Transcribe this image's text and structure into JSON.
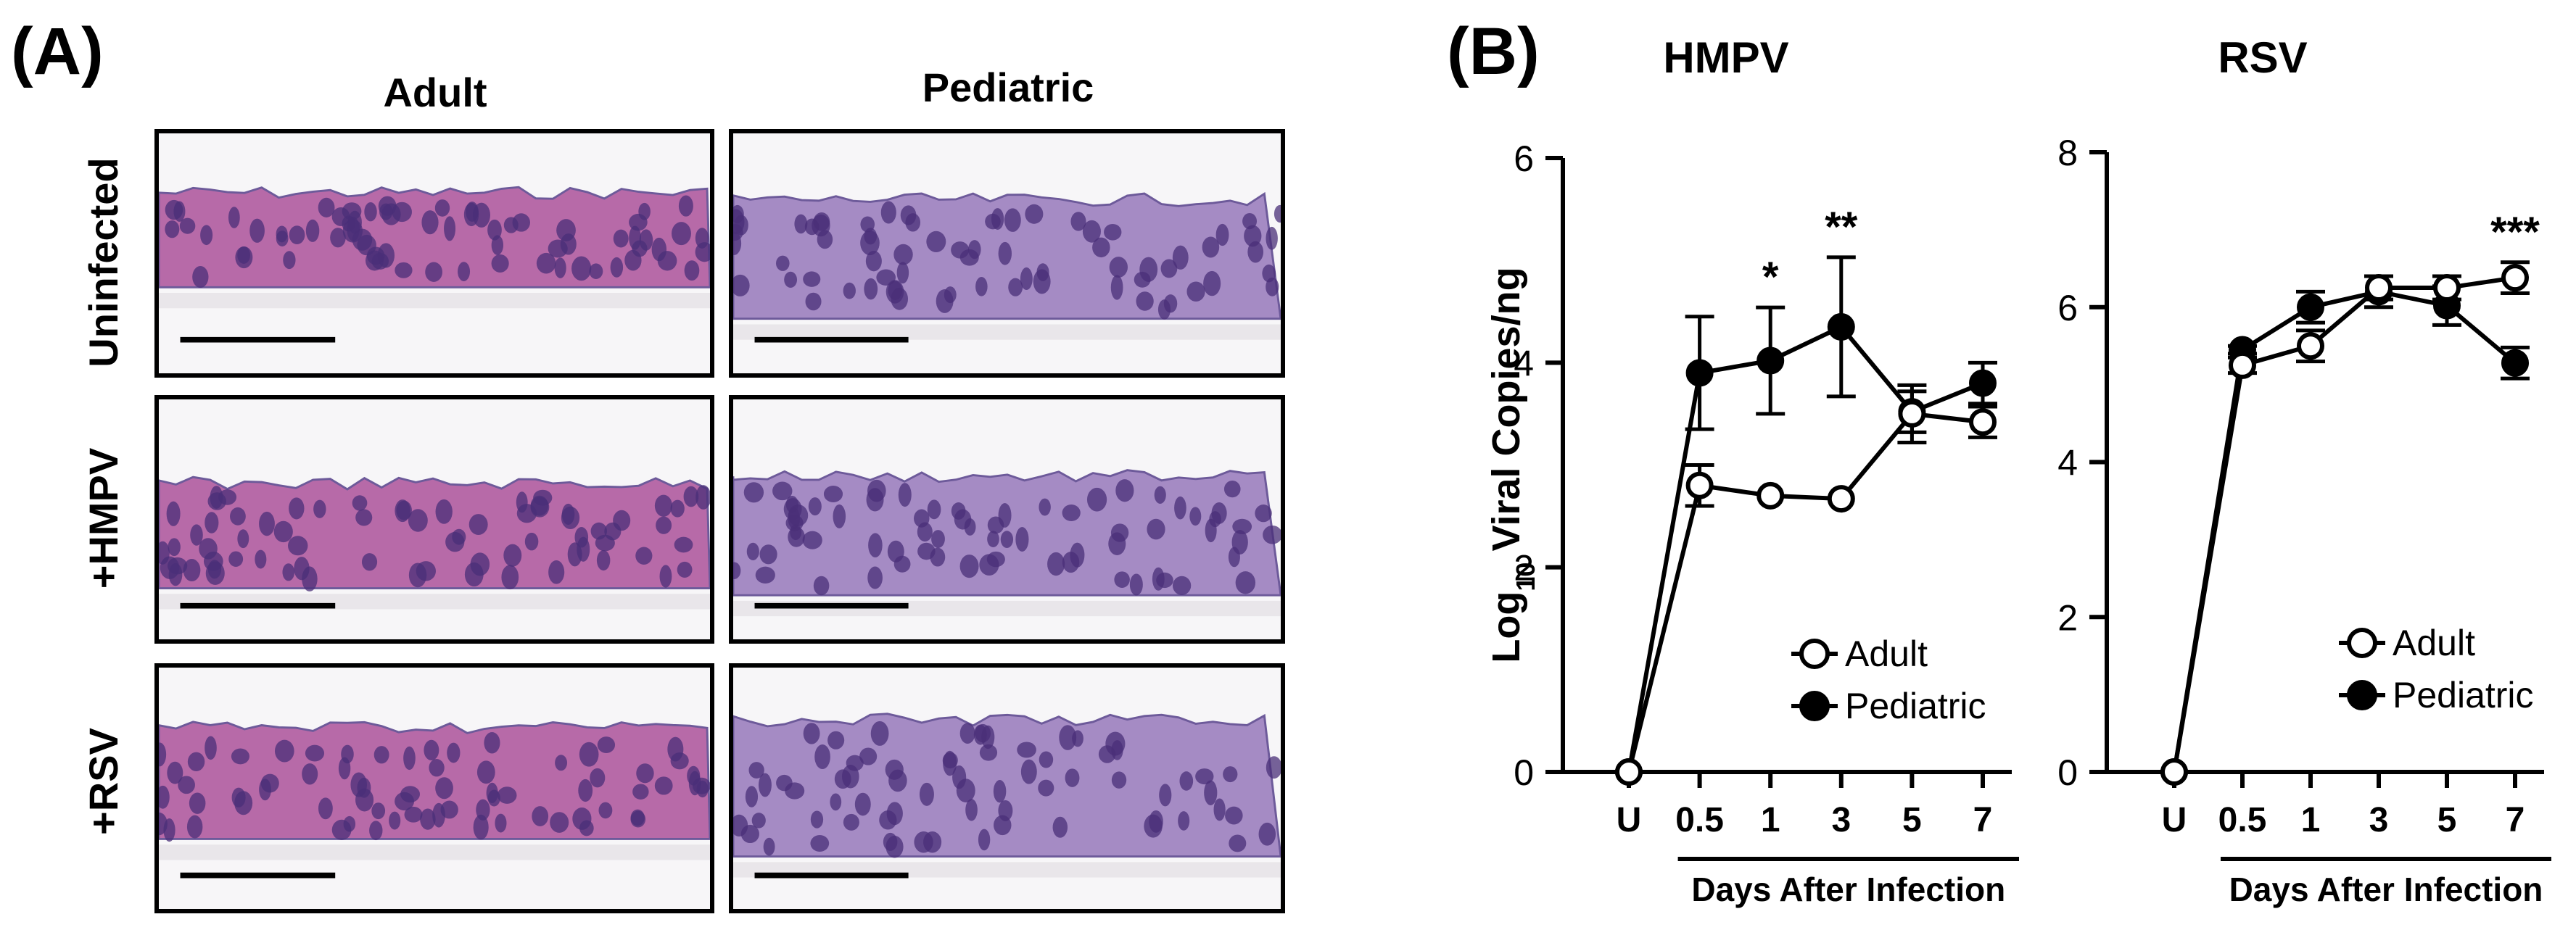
{
  "panel_a": {
    "label": "(A)",
    "columns": [
      "Adult",
      "Pediatric"
    ],
    "rows": [
      "Uninfected",
      "+HMPV",
      "+RSV"
    ]
  },
  "panel_b": {
    "label": "(B)"
  },
  "colors": {
    "tissue_adult": "#b76aa8",
    "tissue_pediatric": "#a58bc4",
    "nuclei": "#4a2f78",
    "membrane": "#e9e6ea"
  },
  "chart_data": [
    {
      "type": "line",
      "title": "HMPV",
      "ylabel": "Log10 Viral Copies/ng",
      "ylabel_main": "Log",
      "ylabel_sub": "10",
      "ylabel_rest": " Viral Copies/ng",
      "xlabel": "Days After Infection",
      "categories": [
        "U",
        "0.5",
        "1",
        "3",
        "5",
        "7"
      ],
      "ylim": [
        0,
        6
      ],
      "yticks": [
        "0",
        "2",
        "4",
        "6"
      ],
      "legend_position": "bottom-right",
      "series": [
        {
          "name": "Adult",
          "marker": "open",
          "values": [
            0,
            2.8,
            2.7,
            2.67,
            3.5,
            3.42
          ],
          "errors": [
            0,
            0.2,
            0,
            0,
            0.28,
            0.15
          ]
        },
        {
          "name": "Pediatric",
          "marker": "filled",
          "values": [
            0,
            3.9,
            4.02,
            4.35,
            3.52,
            3.8
          ],
          "errors": [
            0,
            0.55,
            0.52,
            0.68,
            0.2,
            0.2
          ]
        }
      ],
      "annotations": [
        {
          "category": "1",
          "text": "*"
        },
        {
          "category": "3",
          "text": "**"
        }
      ]
    },
    {
      "type": "line",
      "title": "RSV",
      "xlabel": "Days After Infection",
      "categories": [
        "U",
        "0.5",
        "1",
        "3",
        "5",
        "7"
      ],
      "ylim": [
        0,
        8
      ],
      "yticks": [
        "0",
        "2",
        "4",
        "6",
        "8"
      ],
      "legend_position": "bottom-right",
      "series": [
        {
          "name": "Adult",
          "marker": "open",
          "values": [
            0,
            5.25,
            5.5,
            6.25,
            6.25,
            6.38
          ],
          "errors": [
            0,
            0.1,
            0.2,
            0.15,
            0.15,
            0.2
          ]
        },
        {
          "name": "Pediatric",
          "marker": "filled",
          "values": [
            0,
            5.45,
            6.0,
            6.2,
            6.02,
            5.28
          ],
          "errors": [
            0,
            0.05,
            0.2,
            0.2,
            0.25,
            0.2
          ]
        }
      ],
      "annotations": [
        {
          "category": "7",
          "text": "***"
        }
      ]
    }
  ]
}
